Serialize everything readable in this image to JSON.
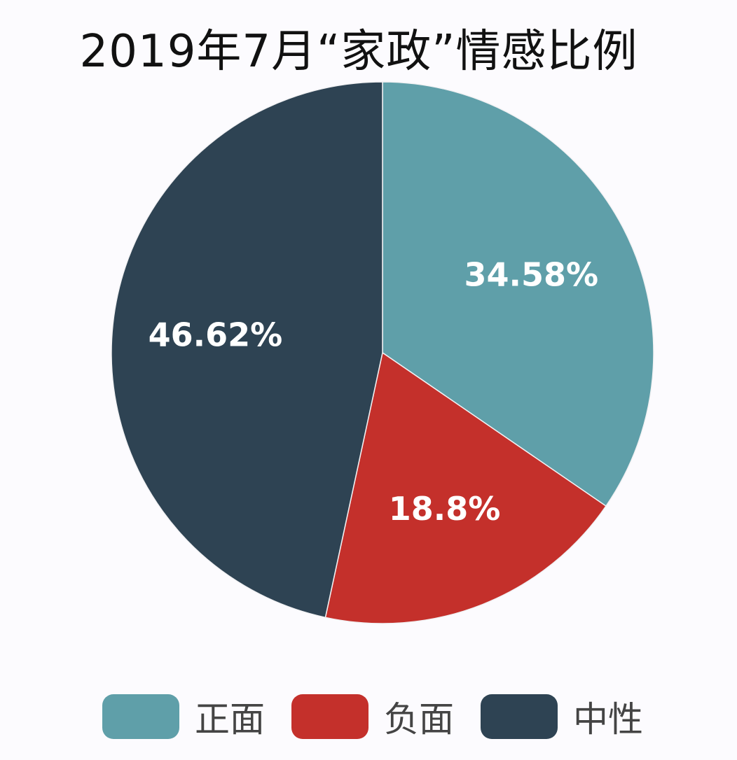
{
  "chart_data": {
    "type": "pie",
    "title": "2019年7月“家政”情感比例",
    "categories": [
      "正面",
      "负面",
      "中性"
    ],
    "values": [
      34.58,
      18.8,
      46.62
    ],
    "value_labels": [
      "34.58%",
      "18.8%",
      "46.62%"
    ],
    "colors": [
      "#5f9fa9",
      "#c4302b",
      "#2e4353"
    ],
    "start_angle": "12 o'clock",
    "direction": "clockwise",
    "legend": "bottom"
  }
}
